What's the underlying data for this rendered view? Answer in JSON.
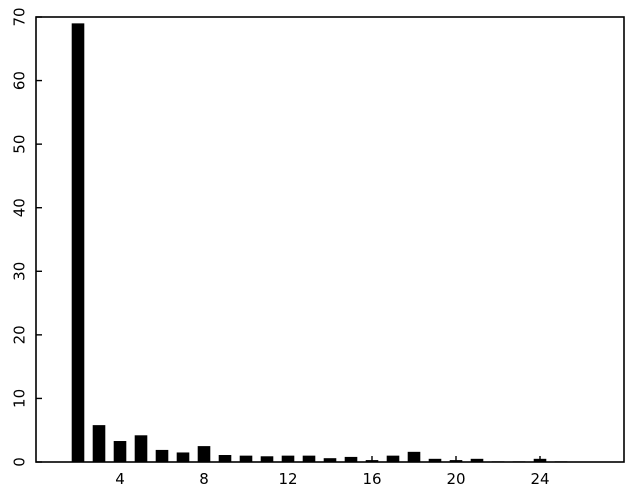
{
  "chart_data": {
    "type": "bar",
    "title": "",
    "xlabel": "",
    "ylabel": "",
    "x": [
      2,
      3,
      4,
      5,
      6,
      7,
      8,
      9,
      10,
      11,
      12,
      13,
      14,
      15,
      16,
      17,
      18,
      19,
      20,
      21,
      22,
      23,
      24,
      25,
      26
    ],
    "values": [
      69,
      5.8,
      3.3,
      4.2,
      1.9,
      1.5,
      2.5,
      1.1,
      1.0,
      0.9,
      1.0,
      1.0,
      0.6,
      0.8,
      0.3,
      1.0,
      1.6,
      0.5,
      0.3,
      0.5,
      0.1,
      0.1,
      0.5,
      0.1,
      0.0
    ],
    "xlim": [
      0,
      28
    ],
    "ylim": [
      0,
      70
    ],
    "xticks": [
      4,
      8,
      12,
      16,
      20,
      24
    ],
    "yticks": [
      0,
      10,
      20,
      30,
      40,
      50,
      60,
      70
    ],
    "xtick_labels": [
      "4",
      "8",
      "12",
      "16",
      "20",
      "24"
    ],
    "ytick_labels": [
      "0",
      "10",
      "20",
      "30",
      "40",
      "50",
      "60",
      "70"
    ],
    "grid": false,
    "bar_color": "#000000"
  }
}
